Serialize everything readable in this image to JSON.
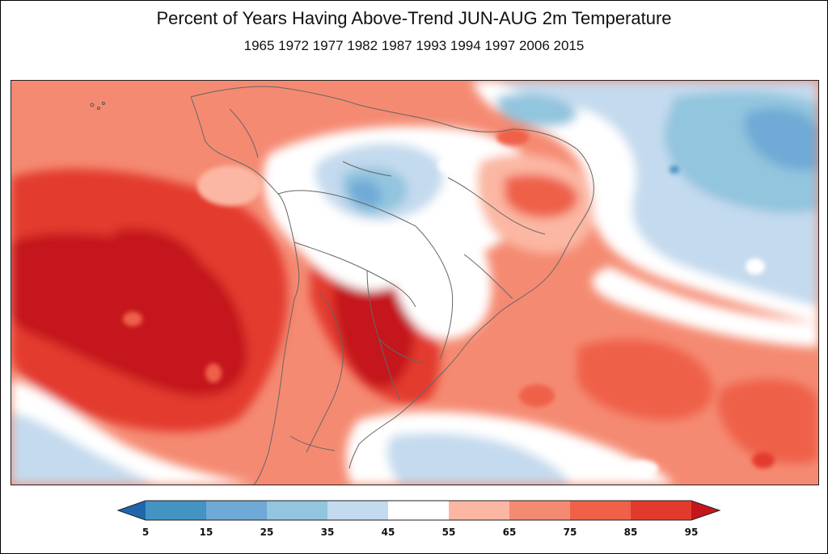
{
  "title": "Percent of Years Having Above-Trend JUN-AUG 2m Temperature",
  "subtitle": "1965 1972 1977 1982 1987 1993 1994 1997 2006 2015",
  "colorbar": {
    "ticks": [
      "5",
      "15",
      "25",
      "35",
      "45",
      "55",
      "65",
      "75",
      "85",
      "95"
    ],
    "colors": {
      "under": "#2166ac",
      "b5_15": "#4393c3",
      "b15_25": "#6faad6",
      "b25_35": "#92c5de",
      "b35_45": "#c4daee",
      "b45_55": "#ffffff",
      "b55_65": "#fbb7a3",
      "b65_75": "#f58a72",
      "b75_85": "#ef6149",
      "b85_95": "#e33a2e",
      "over": "#c4161c"
    }
  }
}
